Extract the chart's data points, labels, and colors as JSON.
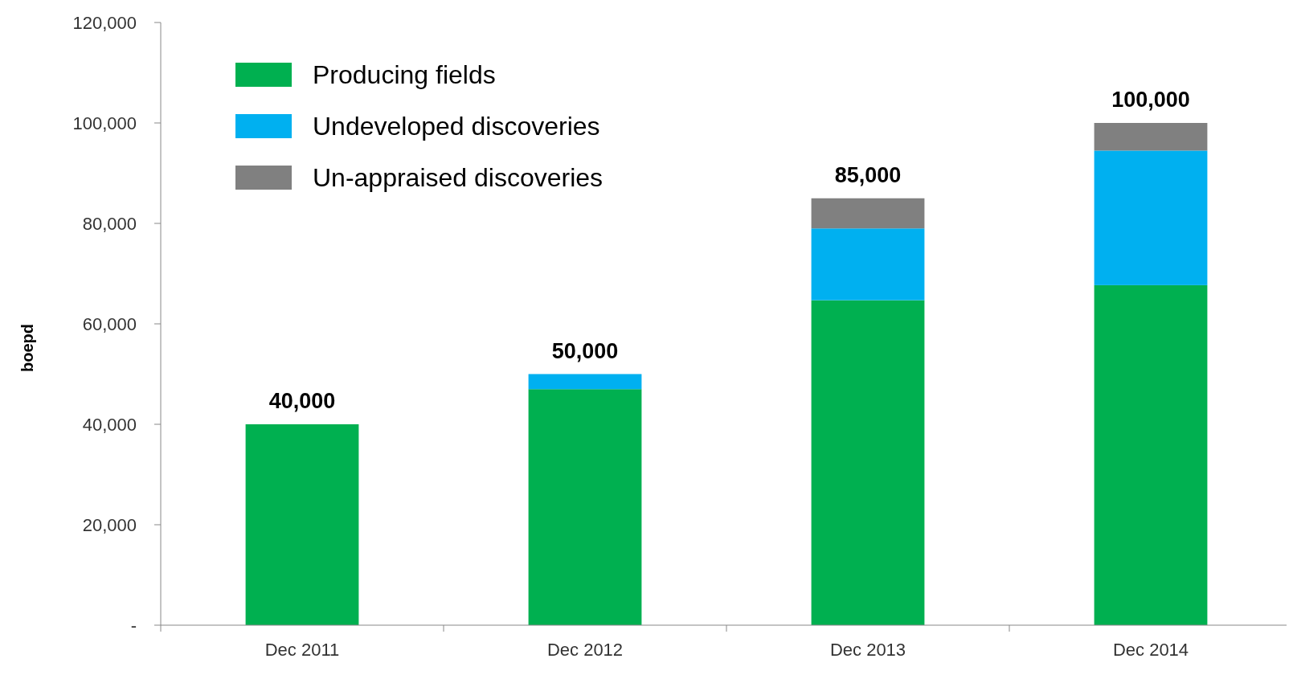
{
  "chart_data": {
    "type": "bar",
    "stacked": true,
    "ylabel": "boepd",
    "categories": [
      "Dec 2011",
      "Dec 2012",
      "Dec 2013",
      "Dec 2014"
    ],
    "series": [
      {
        "name": "Producing fields",
        "color": "#00b050",
        "values": [
          40000,
          47000,
          64700,
          67700
        ]
      },
      {
        "name": "Undeveloped discoveries",
        "color": "#00b0f0",
        "values": [
          null,
          3000,
          14300,
          26800
        ]
      },
      {
        "name": "Un-appraised discoveries",
        "color": "#808080",
        "values": [
          null,
          null,
          6000,
          5500
        ]
      }
    ],
    "ylim": [
      0,
      120000
    ],
    "yticks": [
      {
        "value": 0,
        "label": "-"
      },
      {
        "value": 20000,
        "label": "20,000"
      },
      {
        "value": 40000,
        "label": "40,000"
      },
      {
        "value": 60000,
        "label": "60,000"
      },
      {
        "value": 80000,
        "label": "80,000"
      },
      {
        "value": 100000,
        "label": "100,000"
      },
      {
        "value": 120000,
        "label": "120,000"
      }
    ],
    "totals": [
      "40,000",
      "50,000",
      "85,000",
      "100,000"
    ],
    "legend": "top left",
    "grid": false
  }
}
